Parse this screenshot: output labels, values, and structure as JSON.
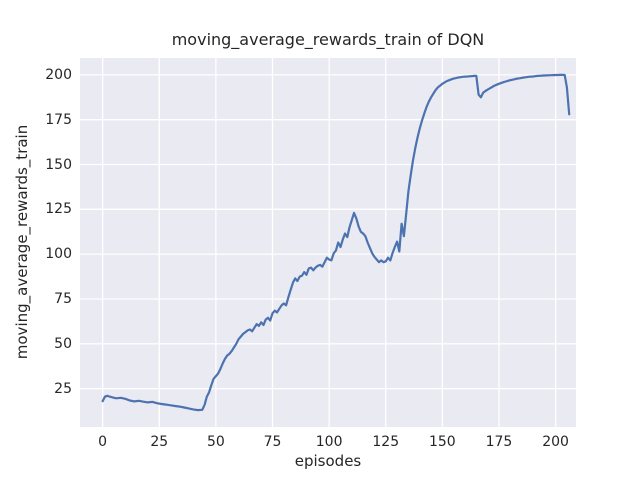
{
  "chart_data": {
    "type": "line",
    "title": "moving_average_rewards_train of DQN",
    "xlabel": "episodes",
    "ylabel": "moving_average_rewards_train",
    "x_ticks": [
      0,
      25,
      50,
      75,
      100,
      125,
      150,
      175,
      200
    ],
    "y_ticks": [
      25,
      50,
      75,
      100,
      125,
      150,
      175,
      200
    ],
    "xlim": [
      -10,
      209
    ],
    "ylim": [
      3.6,
      209.4
    ],
    "grid": true,
    "legend": "none",
    "colors": {
      "line": "#4c72b0",
      "axes_bg": "#eaeaf2",
      "grid": "#ffffff",
      "figure_bg": "#ffffff",
      "text": "#262626"
    },
    "series": [
      {
        "name": "moving_average_rewards_train",
        "points": [
          [
            0,
            18
          ],
          [
            1,
            20.5
          ],
          [
            2,
            21
          ],
          [
            3,
            20.6
          ],
          [
            4,
            20.2
          ],
          [
            6,
            19.6
          ],
          [
            8,
            19.9
          ],
          [
            10,
            19.3
          ],
          [
            12,
            18.4
          ],
          [
            14,
            17.9
          ],
          [
            16,
            18.2
          ],
          [
            18,
            17.7
          ],
          [
            20,
            17.3
          ],
          [
            22,
            17.6
          ],
          [
            24,
            16.9
          ],
          [
            26,
            16.4
          ],
          [
            28,
            16.1
          ],
          [
            30,
            15.7
          ],
          [
            32,
            15.3
          ],
          [
            34,
            15
          ],
          [
            36,
            14.5
          ],
          [
            38,
            14
          ],
          [
            40,
            13.4
          ],
          [
            42,
            13
          ],
          [
            44,
            13.2
          ],
          [
            45,
            16
          ],
          [
            46,
            20.5
          ],
          [
            47,
            23
          ],
          [
            48,
            27
          ],
          [
            49,
            30.5
          ],
          [
            50,
            32
          ],
          [
            51,
            33.5
          ],
          [
            52,
            36
          ],
          [
            53,
            39
          ],
          [
            54,
            41.5
          ],
          [
            55,
            43.5
          ],
          [
            56,
            44.5
          ],
          [
            57,
            46
          ],
          [
            58,
            48
          ],
          [
            59,
            50
          ],
          [
            60,
            52.5
          ],
          [
            61,
            54
          ],
          [
            62,
            55.5
          ],
          [
            63,
            56.5
          ],
          [
            64,
            57.5
          ],
          [
            65,
            58
          ],
          [
            66,
            57
          ],
          [
            67,
            59
          ],
          [
            68,
            61
          ],
          [
            69,
            60
          ],
          [
            70,
            62
          ],
          [
            71,
            60.5
          ],
          [
            72,
            63.5
          ],
          [
            73,
            64.5
          ],
          [
            74,
            63
          ],
          [
            75,
            67
          ],
          [
            76,
            68.5
          ],
          [
            77,
            67.5
          ],
          [
            78,
            69.5
          ],
          [
            79,
            71.5
          ],
          [
            80,
            72.5
          ],
          [
            81,
            71.5
          ],
          [
            82,
            76
          ],
          [
            83,
            80
          ],
          [
            84,
            84
          ],
          [
            85,
            86.5
          ],
          [
            86,
            85
          ],
          [
            87,
            87.5
          ],
          [
            88,
            88
          ],
          [
            89,
            90
          ],
          [
            90,
            88.5
          ],
          [
            91,
            92
          ],
          [
            92,
            92.5
          ],
          [
            93,
            91
          ],
          [
            94,
            92.5
          ],
          [
            95,
            93.5
          ],
          [
            96,
            94
          ],
          [
            97,
            93
          ],
          [
            98,
            95.5
          ],
          [
            99,
            98
          ],
          [
            100,
            97
          ],
          [
            101,
            96.5
          ],
          [
            102,
            100.5
          ],
          [
            103,
            102
          ],
          [
            104,
            106.5
          ],
          [
            105,
            104
          ],
          [
            106,
            108
          ],
          [
            107,
            111.5
          ],
          [
            108,
            109.5
          ],
          [
            109,
            115
          ],
          [
            110,
            119
          ],
          [
            111,
            123
          ],
          [
            112,
            120
          ],
          [
            113,
            115.5
          ],
          [
            114,
            112.5
          ],
          [
            115,
            111.5
          ],
          [
            116,
            110
          ],
          [
            117,
            106.5
          ],
          [
            118,
            103.5
          ],
          [
            119,
            100.5
          ],
          [
            120,
            98.5
          ],
          [
            121,
            97
          ],
          [
            122,
            95.5
          ],
          [
            123,
            96.5
          ],
          [
            124,
            95.5
          ],
          [
            125,
            96
          ],
          [
            126,
            98
          ],
          [
            127,
            96.5
          ],
          [
            128,
            100.5
          ],
          [
            129,
            104
          ],
          [
            130,
            107
          ],
          [
            131,
            101.5
          ],
          [
            132,
            117
          ],
          [
            133,
            110
          ],
          [
            134,
            122
          ],
          [
            135,
            135
          ],
          [
            136,
            144
          ],
          [
            137,
            152
          ],
          [
            138,
            159
          ],
          [
            139,
            165
          ],
          [
            140,
            170
          ],
          [
            141,
            174.5
          ],
          [
            142,
            178.5
          ],
          [
            143,
            182
          ],
          [
            144,
            185
          ],
          [
            145,
            187.5
          ],
          [
            146,
            189.5
          ],
          [
            147,
            191.5
          ],
          [
            148,
            193
          ],
          [
            149,
            194
          ],
          [
            150,
            195
          ],
          [
            151,
            195.8
          ],
          [
            152,
            196.5
          ],
          [
            153,
            197
          ],
          [
            154,
            197.5
          ],
          [
            155,
            197.9
          ],
          [
            156,
            198.2
          ],
          [
            157,
            198.5
          ],
          [
            158,
            198.7
          ],
          [
            159,
            198.9
          ],
          [
            160,
            199
          ],
          [
            161,
            199.1
          ],
          [
            162,
            199.2
          ],
          [
            163,
            199.3
          ],
          [
            164,
            199.4
          ],
          [
            165,
            199.5
          ],
          [
            166,
            189
          ],
          [
            167,
            187.5
          ],
          [
            168,
            190
          ],
          [
            169,
            191
          ],
          [
            170,
            191.8
          ],
          [
            171,
            192.5
          ],
          [
            172,
            193.2
          ],
          [
            173,
            194
          ],
          [
            174,
            194.5
          ],
          [
            175,
            195
          ],
          [
            176,
            195.5
          ],
          [
            177,
            195.9
          ],
          [
            178,
            196.3
          ],
          [
            179,
            196.7
          ],
          [
            180,
            197
          ],
          [
            181,
            197.3
          ],
          [
            182,
            197.6
          ],
          [
            183,
            197.9
          ],
          [
            184,
            198.1
          ],
          [
            185,
            198.3
          ],
          [
            186,
            198.5
          ],
          [
            187,
            198.7
          ],
          [
            188,
            198.9
          ],
          [
            189,
            199
          ],
          [
            190,
            199.1
          ],
          [
            191,
            199.25
          ],
          [
            192,
            199.4
          ],
          [
            193,
            199.5
          ],
          [
            194,
            199.6
          ],
          [
            195,
            199.65
          ],
          [
            196,
            199.7
          ],
          [
            197,
            199.75
          ],
          [
            198,
            199.8
          ],
          [
            199,
            199.85
          ],
          [
            200,
            199.9
          ],
          [
            201,
            199.9
          ],
          [
            202,
            200
          ],
          [
            203,
            200
          ],
          [
            204,
            199.9
          ],
          [
            205,
            193
          ],
          [
            206,
            178
          ]
        ]
      }
    ]
  }
}
